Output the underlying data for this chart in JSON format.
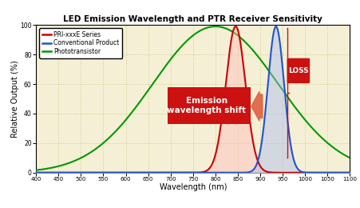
{
  "title": "LED Emission Wavelength and PTR Receiver Sensitivity",
  "xlabel": "Wavelength (nm)",
  "ylabel": "Relative Output (%)",
  "xlim": [
    400,
    1100
  ],
  "ylim": [
    0,
    100
  ],
  "xticks": [
    400,
    450,
    500,
    550,
    600,
    650,
    700,
    750,
    800,
    850,
    900,
    950,
    1000,
    1050,
    1100
  ],
  "yticks": [
    0,
    20,
    40,
    60,
    80,
    100
  ],
  "bg_color": "#f5f0d5",
  "grid_color": "#cccc88",
  "phototransistor_color": "#009900",
  "pri_color": "#cc0000",
  "conv_color": "#2255cc",
  "pri_fill_color": "#ffbbbb",
  "conv_fill_color": "#aabbee",
  "legend_labels": [
    "PRI-xxxE Series",
    "Conventional Product",
    "Phototransistor"
  ],
  "emission_box_color": "#cc1111",
  "emission_text": "Emission\nwavelength shift",
  "loss_box_color": "#cc1111",
  "loss_text": "LOSS",
  "pri_peak": 845,
  "pri_sigma": 22,
  "conv_peak": 935,
  "conv_sigma": 18,
  "pt_peak": 800,
  "pt_sigma": 140
}
